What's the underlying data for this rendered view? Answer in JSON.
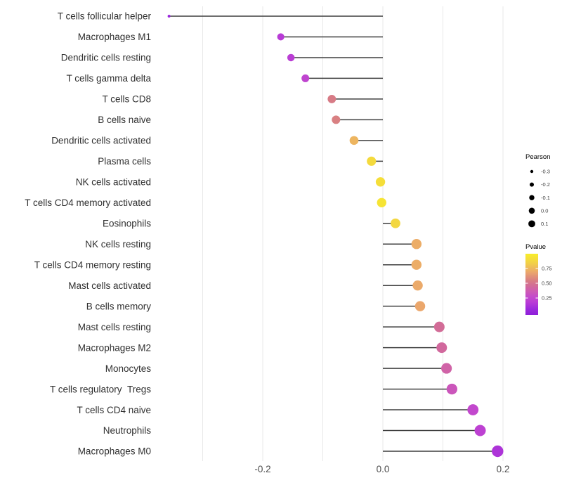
{
  "chart_data": {
    "type": "lollipop",
    "title": "",
    "xlabel": "",
    "ylabel": "",
    "grid": true,
    "legend_position": "right",
    "x_tick_labels": [
      "-0.2",
      "0.0",
      "0.2"
    ],
    "x_tick_values": [
      -0.2,
      0.0,
      0.2
    ],
    "gridline_values": [
      -0.3,
      -0.2,
      -0.1,
      0.0,
      0.1,
      0.2
    ],
    "xlim": [
      -0.385,
      0.225
    ],
    "categories": [
      "T cells follicular helper",
      "Macrophages M1",
      "Dendritic cells resting",
      "T cells gamma delta",
      "T cells CD8",
      "B cells naive",
      "Dendritic cells activated",
      "Plasma cells",
      "NK cells activated",
      "T cells CD4 memory activated",
      "Eosinophils",
      "NK cells resting",
      "T cells CD4 memory resting",
      "Mast cells activated",
      "B cells memory",
      "Mast cells resting",
      "Macrophages M2",
      "Monocytes",
      "T cells regulatory  Tregs",
      "T cells CD4 naive",
      "Neutrophils",
      "Macrophages M0"
    ],
    "series": [
      {
        "name": "Pearson",
        "values": [
          -0.356,
          -0.17,
          -0.153,
          -0.129,
          -0.085,
          -0.078,
          -0.048,
          -0.019,
          -0.004,
          -0.002,
          0.021,
          0.056,
          0.056,
          0.058,
          0.062,
          0.094,
          0.098,
          0.106,
          0.115,
          0.15,
          0.162,
          0.191
        ]
      },
      {
        "name": "Pvalue (estimated from dot color)",
        "values": [
          0.08,
          0.2,
          0.22,
          0.26,
          0.55,
          0.57,
          0.75,
          0.9,
          0.92,
          0.95,
          0.88,
          0.72,
          0.72,
          0.71,
          0.7,
          0.48,
          0.46,
          0.43,
          0.36,
          0.28,
          0.24,
          0.16
        ]
      }
    ]
  },
  "legend_size": {
    "title": "Pearson",
    "entries": [
      "-0.3",
      "-0.2",
      "-0.1",
      "0.0",
      "0.1"
    ]
  },
  "legend_color": {
    "title": "Pvalue",
    "tick_labels": [
      "0.75",
      "0.50",
      "0.25"
    ],
    "tick_values": [
      0.75,
      0.5,
      0.25
    ]
  },
  "colors": {
    "background": "#ffffff",
    "gridline": "#e8e8e8",
    "stem": "#3f3f3f",
    "axis_text": "#4d4d4d",
    "category_text": "#303030",
    "legend_title_text": "#000000",
    "legend_label_text": "#3c3c3c",
    "legend_dot": "#000000",
    "pvalue_gradient_stops": [
      [
        0.0,
        "#8E1FD9"
      ],
      [
        0.1,
        "#9D2ADC"
      ],
      [
        0.2,
        "#B83BD6"
      ],
      [
        0.3,
        "#C44BCB"
      ],
      [
        0.4,
        "#CF5DB0"
      ],
      [
        0.48,
        "#D26C97"
      ],
      [
        0.56,
        "#D87D84"
      ],
      [
        0.7,
        "#EBA76C"
      ],
      [
        0.85,
        "#F2D147"
      ],
      [
        1.0,
        "#F8ED2A"
      ]
    ]
  }
}
